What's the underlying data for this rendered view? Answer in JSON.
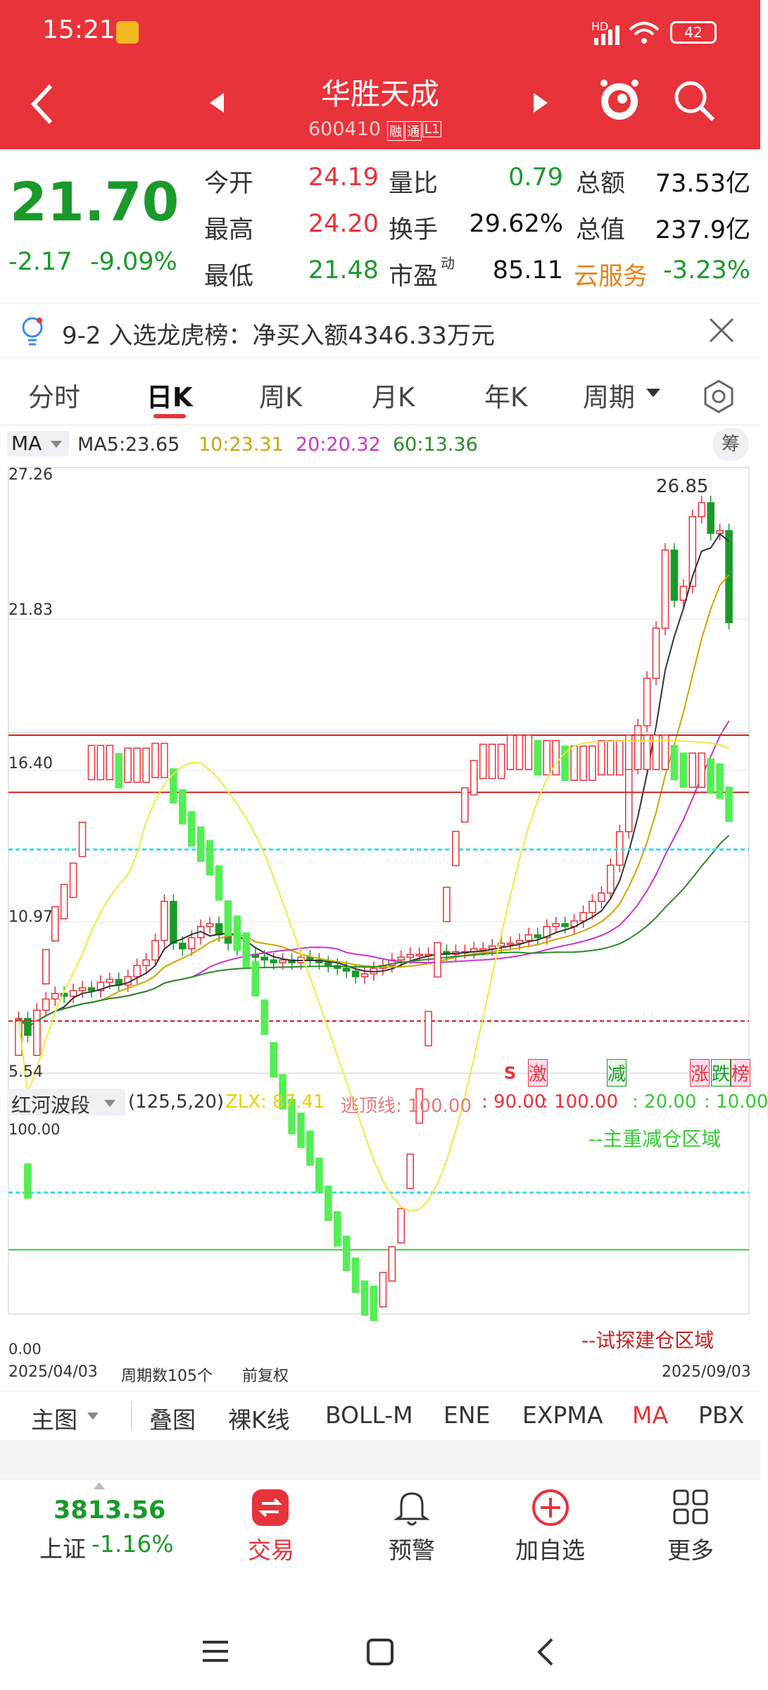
{
  "status_bar": {
    "time": "15:21",
    "network": "HD",
    "battery": "42"
  },
  "header": {
    "title": "华胜天成",
    "code": "600410",
    "tag1": "融",
    "tag2": "通",
    "tag3": "L1"
  },
  "quote": {
    "price": "21.70",
    "change": "-2.17",
    "change_pct": "-9.09%",
    "rows": [
      {
        "l1": "今开",
        "v1": "24.19",
        "l2": "量比",
        "v2": "0.79",
        "l3": "总额",
        "v3": "73.53亿"
      },
      {
        "l1": "最高",
        "v1": "24.20",
        "l2": "换手",
        "v2": "29.62%",
        "l3": "总值",
        "v3": "237.9亿"
      },
      {
        "l1": "最低",
        "v1": "21.48",
        "l2": "市盈",
        "l2_sup": "动",
        "v2": "85.11",
        "l3": "云服务",
        "v3": "-3.23%"
      }
    ]
  },
  "notice": {
    "text": "9-2 入选龙虎榜：净买入额4346.33万元"
  },
  "tabs": [
    "分时",
    "日K",
    "周K",
    "月K",
    "年K",
    "周期"
  ],
  "ma_legend": {
    "selector": "MA",
    "ma5": "MA5:23.65",
    "ma10": "10:23.31",
    "ma20": "20:20.32",
    "ma60": "60:13.36",
    "chip_btn": "筹"
  },
  "colors": {
    "up": "#e8333a",
    "down": "#1a9a2a",
    "ma5": "#333333",
    "ma10": "#c8a800",
    "ma20": "#cc33cc",
    "ma60": "#2a8a2a",
    "brand": "#e8333a"
  },
  "chart_data": {
    "type": "candlestick",
    "y_ticks": [
      "27.26",
      "21.83",
      "16.40",
      "10.97",
      "5.54"
    ],
    "ylim": [
      5.54,
      27.26
    ],
    "max_label": "26.85",
    "signals": [
      "S",
      "激",
      "减",
      "涨",
      "跌",
      "榜"
    ],
    "start_date": "2025/04/03",
    "end_date": "2025/09/03",
    "period_count": "周期数105个",
    "adjust": "前复权",
    "closes": [
      7.5,
      6.9,
      7.8,
      8.2,
      8.4,
      8.3,
      8.5,
      8.6,
      8.5,
      8.8,
      8.9,
      8.7,
      9.0,
      9.4,
      9.6,
      10.3,
      11.7,
      10.2,
      10.0,
      10.4,
      10.8,
      10.9,
      10.5,
      10.2,
      10.0,
      9.8,
      9.7,
      9.6,
      9.5,
      9.6,
      9.5,
      9.7,
      9.6,
      9.5,
      9.4,
      9.3,
      9.2,
      9.0,
      9.1,
      9.3,
      9.4,
      9.6,
      9.7,
      9.8,
      9.8,
      9.8,
      9.9,
      9.8,
      9.9,
      9.9,
      10.0,
      10.0,
      10.1,
      10.2,
      10.2,
      10.3,
      10.5,
      10.4,
      10.8,
      10.9,
      10.8,
      11.0,
      11.3,
      11.7,
      12.0,
      13.0,
      14.2,
      16.5,
      18.0,
      19.7,
      21.5,
      24.3,
      22.5,
      23.0,
      25.5,
      26.0,
      24.9,
      25.0,
      21.7
    ],
    "ma60_last": 13.36,
    "ma20_last": 20.32,
    "ma10_last": 23.31,
    "ma5_last": 23.65
  },
  "indicator": {
    "name": "红河波段",
    "params": "(125,5,20)",
    "zlx": "ZLX: 87.41",
    "escape": "逃顶线: 100.00",
    "v1": ": 90.00",
    "v2": ": 100.00",
    "v3": ": 20.00",
    "v4": ": 10.00",
    "top": "100.00",
    "bottom": "0.00",
    "zone_top": "--主重减仓区域",
    "zone_bottom": "--试探建仓区域"
  },
  "bottom_tabs": [
    "主图",
    "叠图",
    "裸K线",
    "BOLL-M",
    "ENE",
    "EXPMA",
    "MA",
    "PBX"
  ],
  "bottom_nav": {
    "index_value": "3813.56",
    "index_name": "上证",
    "index_change": "-1.16%",
    "trade": "交易",
    "alert": "预警",
    "add": "加自选",
    "more": "更多"
  }
}
